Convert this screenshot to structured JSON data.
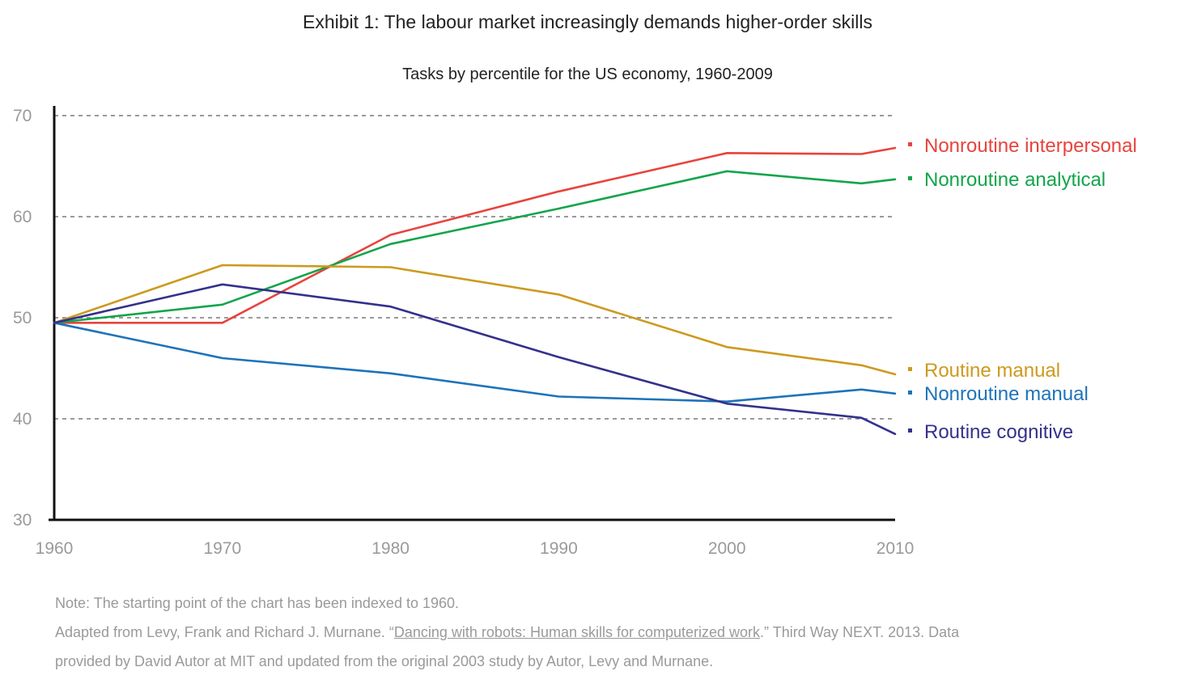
{
  "chart_data": {
    "type": "line",
    "title": "Exhibit 1: The labour market increasingly demands higher-order skills",
    "subtitle": "Tasks by percentile for the US economy, 1960-2009",
    "xlabel": "",
    "ylabel": "",
    "xlim": [
      1960,
      2010
    ],
    "ylim": [
      30,
      70
    ],
    "xticks": [
      1960,
      1970,
      1980,
      1990,
      2000,
      2010
    ],
    "yticks": [
      30,
      40,
      50,
      60,
      70
    ],
    "grid": "horizontal dashed",
    "legend": "right, inline labels",
    "series": [
      {
        "name": "Nonroutine interpersonal",
        "color": "#e8433d",
        "points": [
          [
            1960,
            49.5
          ],
          [
            1970,
            49.5
          ],
          [
            1980,
            58.2
          ],
          [
            1990,
            62.5
          ],
          [
            2000,
            66.3
          ],
          [
            2008,
            66.2
          ],
          [
            2010,
            66.8
          ]
        ]
      },
      {
        "name": "Nonroutine analytical",
        "color": "#12a54a",
        "points": [
          [
            1960,
            49.5
          ],
          [
            1970,
            51.3
          ],
          [
            1980,
            57.3
          ],
          [
            1990,
            60.8
          ],
          [
            2000,
            64.5
          ],
          [
            2008,
            63.3
          ],
          [
            2010,
            63.7
          ]
        ]
      },
      {
        "name": "Routine manual",
        "color": "#cc9a1e",
        "points": [
          [
            1960,
            49.5
          ],
          [
            1970,
            55.2
          ],
          [
            1975,
            55.1
          ],
          [
            1980,
            55.0
          ],
          [
            1990,
            52.3
          ],
          [
            2000,
            47.1
          ],
          [
            2008,
            45.3
          ],
          [
            2010,
            44.4
          ]
        ]
      },
      {
        "name": "Nonroutine manual",
        "color": "#1e73b9",
        "points": [
          [
            1960,
            49.5
          ],
          [
            1970,
            46.0
          ],
          [
            1980,
            44.5
          ],
          [
            1990,
            42.2
          ],
          [
            2000,
            41.7
          ],
          [
            2008,
            42.9
          ],
          [
            2010,
            42.5
          ]
        ]
      },
      {
        "name": "Routine cognitive",
        "color": "#34318c",
        "points": [
          [
            1960,
            49.5
          ],
          [
            1970,
            53.3
          ],
          [
            1980,
            51.1
          ],
          [
            1990,
            46.1
          ],
          [
            2000,
            41.5
          ],
          [
            2008,
            40.1
          ],
          [
            2010,
            38.5
          ]
        ]
      }
    ]
  },
  "notes": {
    "line1": "Note: The starting point of the chart has been indexed to 1960.",
    "line2_prefix": "Adapted from Levy, Frank and Richard J. Murnane. “",
    "line2_link": "Dancing with robots: Human skills for computerized work",
    "line2_suffix": ".” Third Way NEXT. 2013. Data",
    "line3": "provided by David Autor at MIT and updated from the original 2003 study by Autor, Levy and Murnane."
  }
}
